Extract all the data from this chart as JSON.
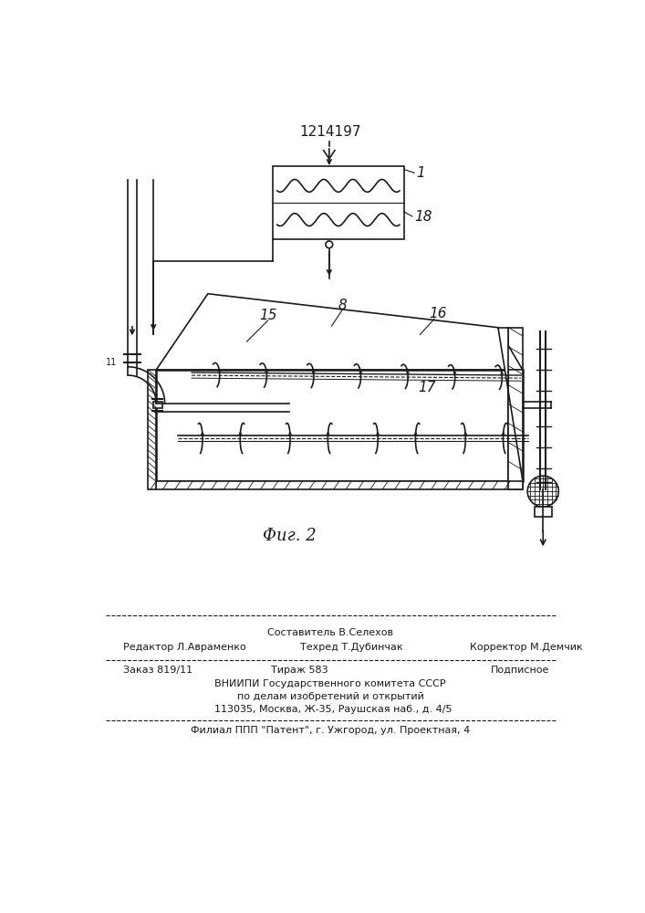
{
  "patent_number": "1214197",
  "fig_label": "Фиг. 2",
  "bg_color": "#ffffff",
  "line_color": "#1a1a1a",
  "footer_line1_left": "Редактор Л.Авраменко",
  "footer_line1_center_top": "Составитель В.Селехов",
  "footer_line1_center_bot": "Техред Т.Дубинчак",
  "footer_line1_right": "Корректор М.Демчик",
  "footer_line2_left": "Заказ 819/11",
  "footer_line2_center": "Тираж 583",
  "footer_line2_right": "Подписное",
  "footer_line3": "ВНИИПИ Государственного комитета СССР",
  "footer_line4": "по делам изобретений и открытий",
  "footer_line5": "  113035, Москва, Ж-35, Раушская наб., д. 4/5",
  "footer_line6": "Филиал ППП \"Патент\", г. Ужгород, ул. Проектная, 4"
}
